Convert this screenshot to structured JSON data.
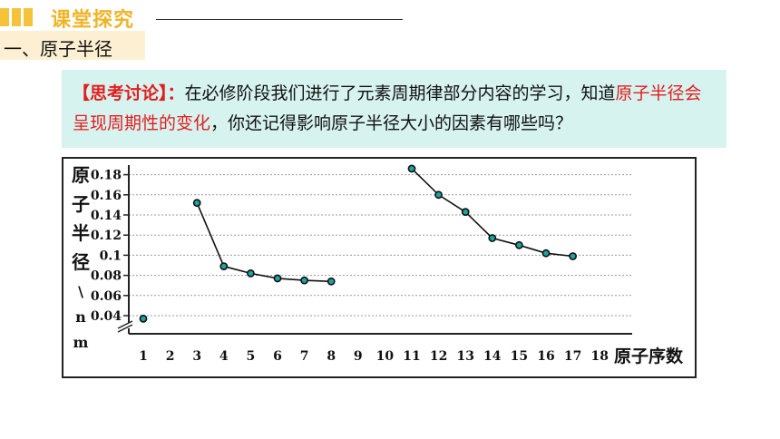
{
  "header": {
    "title": "课堂探究",
    "section": "一、原子半径"
  },
  "discussion": {
    "tag": "【思考讨论】：",
    "text_before": "在必修阶段我们进行了元素周期律部分内容的学习，知道",
    "text_red": "原子半径会呈现周期性的变化",
    "text_after": "，你还记得影响原子半径大小的因素有哪些吗？"
  },
  "colors": {
    "accent": "#f5c23a",
    "red": "#e31d1d",
    "discussion_bg": "#d6f3ef",
    "marker": "#1aa3a3"
  },
  "chart_data": {
    "type": "line",
    "ylabel_chars": [
      "原",
      "子",
      "半",
      "径"
    ],
    "ylabel_unit_chars": [
      "\\",
      "n",
      "m"
    ],
    "xlabel": "原子序数",
    "x_ticks": [
      1,
      2,
      3,
      4,
      5,
      6,
      7,
      8,
      9,
      10,
      11,
      12,
      13,
      14,
      15,
      16,
      17,
      18
    ],
    "y_ticks": [
      "0.04",
      "0.06",
      "0.08",
      "0.1",
      "0.12",
      "0.14",
      "0.16",
      "0.18"
    ],
    "ylim": [
      0.04,
      0.18
    ],
    "grid": true,
    "axis_break": true,
    "series": [
      {
        "points": [
          [
            1,
            0.037
          ]
        ]
      },
      {
        "points": [
          [
            3,
            0.152
          ],
          [
            4,
            0.089
          ],
          [
            5,
            0.082
          ],
          [
            6,
            0.077
          ],
          [
            7,
            0.075
          ],
          [
            8,
            0.074
          ]
        ]
      },
      {
        "points": [
          [
            11,
            0.186
          ],
          [
            12,
            0.16
          ],
          [
            13,
            0.143
          ],
          [
            14,
            0.117
          ],
          [
            15,
            0.11
          ],
          [
            16,
            0.102
          ],
          [
            17,
            0.099
          ]
        ]
      }
    ]
  }
}
